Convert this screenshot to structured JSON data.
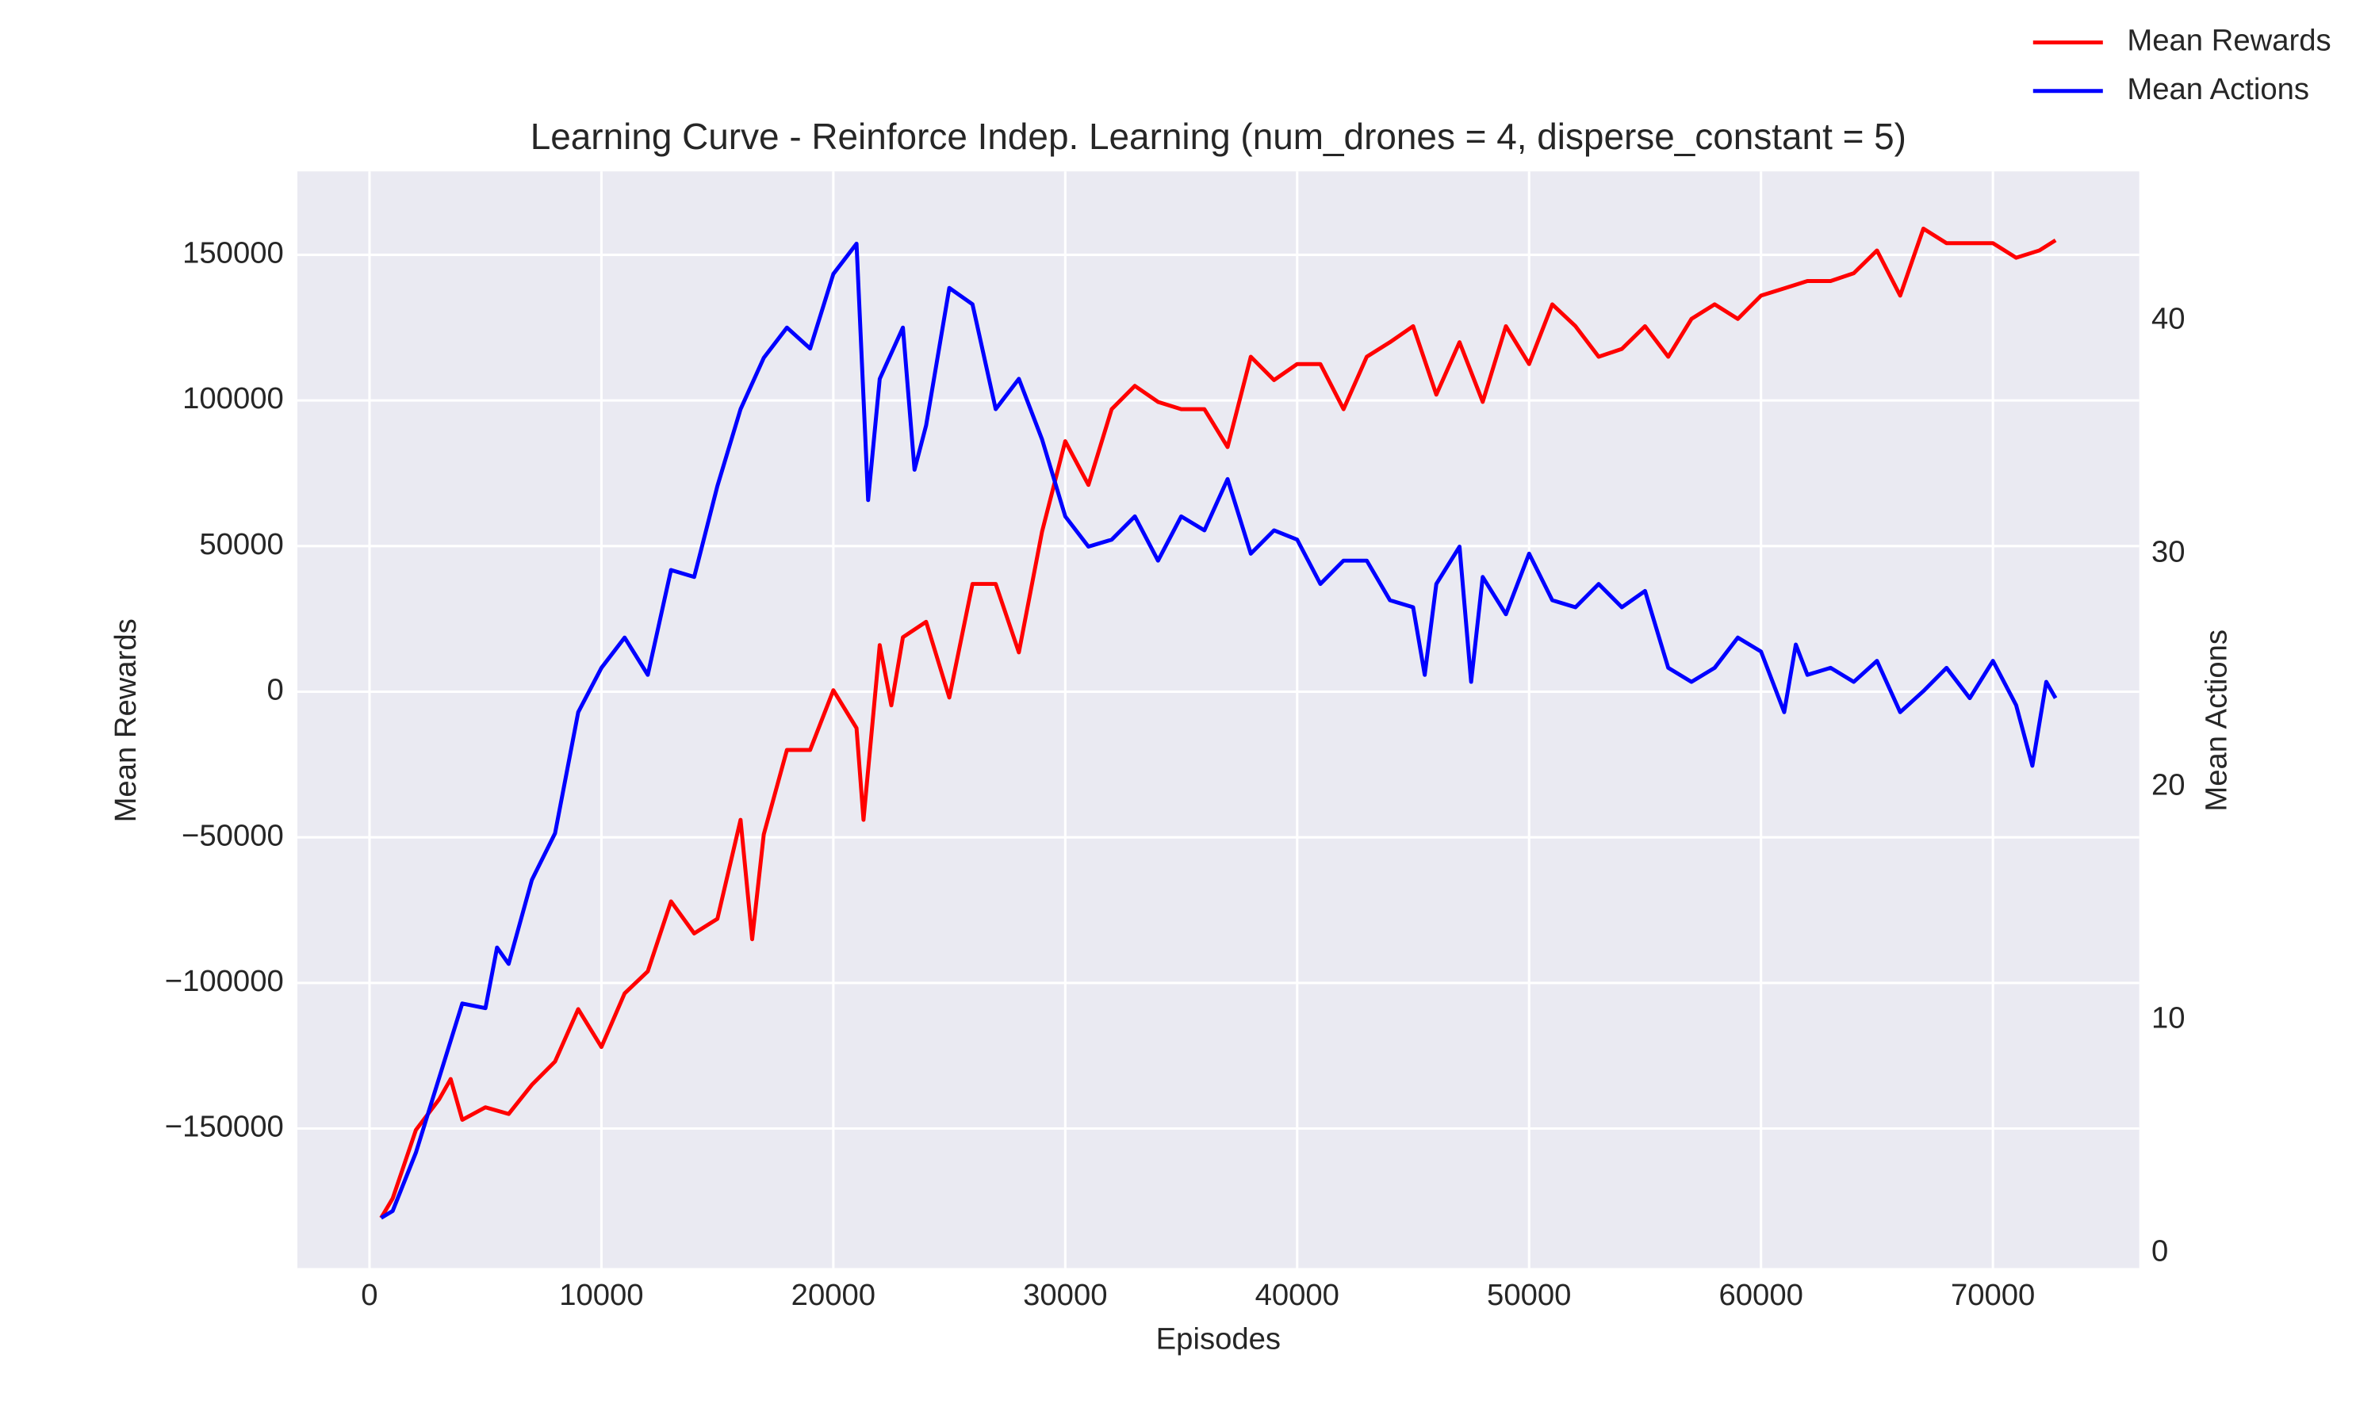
{
  "chart_data": {
    "type": "line",
    "title": "Learning Curve - Reinforce Indep. Learning (num_drones = 4, disperse_constant = 5)",
    "xlabel": "Episodes",
    "ylabel": "Mean Rewards",
    "y2label": "Mean Actions",
    "xlim": [
      -3110,
      76310
    ],
    "xticks": [
      0,
      10000,
      20000,
      30000,
      40000,
      50000,
      60000,
      70000
    ],
    "ylim": [
      -197900,
      178650
    ],
    "yticks": [
      {
        "value": -150000,
        "label": "−150000"
      },
      {
        "value": -100000,
        "label": "−100000"
      },
      {
        "value": -50000,
        "label": "−50000"
      },
      0,
      50000,
      100000,
      150000
    ],
    "y2lim": [
      -0.65,
      46.4
    ],
    "y2ticks": [
      0,
      10,
      20,
      30,
      40
    ],
    "grid": true,
    "legend": "upper right",
    "series": [
      {
        "name": "Mean Rewards",
        "color": "#ff0000",
        "x": [
          500,
          1000,
          2000,
          3000,
          3500,
          4000,
          5000,
          6000,
          7000,
          8000,
          9000,
          10000,
          11000,
          12000,
          13000,
          14000,
          15000,
          16000,
          16500,
          17000,
          18000,
          19000,
          20000,
          21000,
          21300,
          22000,
          22500,
          23000,
          24000,
          25000,
          26000,
          27000,
          28000,
          29000,
          30000,
          31000,
          32000,
          33000,
          34000,
          35000,
          36000,
          37000,
          38000,
          39000,
          40000,
          41000,
          42000,
          43000,
          44000,
          45000,
          46000,
          47000,
          48000,
          49000,
          50000,
          51000,
          52000,
          53000,
          54000,
          55000,
          56000,
          57000,
          58000,
          59000,
          60000,
          61000,
          62000,
          63000,
          64000,
          65000,
          66000,
          67000,
          68000,
          69000,
          70000,
          71000,
          72000,
          72700
        ],
        "values": [
          -180700,
          -174000,
          -150500,
          -140000,
          -133000,
          -147000,
          -142700,
          -145000,
          -135000,
          -127000,
          -109000,
          -122000,
          -103600,
          -96000,
          -72000,
          -83000,
          -78000,
          -44000,
          -85000,
          -49000,
          -20000,
          -20000,
          500,
          -12500,
          -44000,
          16000,
          -4700,
          18700,
          24000,
          -2000,
          37000,
          37000,
          13500,
          55000,
          86000,
          71000,
          97000,
          105000,
          99500,
          97000,
          97000,
          84000,
          115000,
          107000,
          112500,
          112500,
          97000,
          115000,
          120000,
          125500,
          102000,
          120000,
          99500,
          125500,
          112500,
          133000,
          125500,
          115000,
          117700,
          125500,
          115000,
          128000,
          133000,
          128000,
          136000,
          138500,
          141000,
          141000,
          143700,
          151500,
          136000,
          159000,
          154000,
          154000,
          154000,
          149000,
          151500,
          155000
        ]
      },
      {
        "name": "Mean Actions",
        "color": "#0000ff",
        "axis": "y2",
        "x": [
          500,
          1000,
          2000,
          3000,
          4000,
          5000,
          5500,
          6000,
          7000,
          8000,
          9000,
          10000,
          11000,
          12000,
          13000,
          14000,
          15000,
          16000,
          17000,
          18000,
          19000,
          20000,
          21000,
          21500,
          22000,
          23000,
          23500,
          24000,
          25000,
          26000,
          27000,
          28000,
          29000,
          30000,
          31000,
          32000,
          33000,
          34000,
          35000,
          36000,
          37000,
          38000,
          39000,
          40000,
          41000,
          42000,
          43000,
          44000,
          45000,
          45500,
          46000,
          47000,
          47500,
          48000,
          49000,
          50000,
          51000,
          52000,
          53000,
          54000,
          55000,
          56000,
          57000,
          58000,
          59000,
          60000,
          61000,
          61500,
          62000,
          63000,
          64000,
          65000,
          66000,
          67000,
          68000,
          69000,
          70000,
          71000,
          71700,
          72300,
          72700
        ],
        "values": [
          1.5,
          1.8,
          4.3,
          7.5,
          10.7,
          10.5,
          13.1,
          12.4,
          16.0,
          18.0,
          23.2,
          25.1,
          26.4,
          24.8,
          29.3,
          29.0,
          32.9,
          36.2,
          38.4,
          39.7,
          38.8,
          42.0,
          43.3,
          32.3,
          37.5,
          39.7,
          33.6,
          35.5,
          41.4,
          40.7,
          36.2,
          37.5,
          34.9,
          31.6,
          30.3,
          30.6,
          31.6,
          29.7,
          31.6,
          31.0,
          33.2,
          30.0,
          31.0,
          30.6,
          28.7,
          29.7,
          29.7,
          28.0,
          27.7,
          24.8,
          28.7,
          30.3,
          24.5,
          29.0,
          27.4,
          30.0,
          28.0,
          27.7,
          28.7,
          27.7,
          28.4,
          25.1,
          24.5,
          25.1,
          26.4,
          25.8,
          23.2,
          26.1,
          24.8,
          25.1,
          24.5,
          25.4,
          23.2,
          24.1,
          25.1,
          23.8,
          25.4,
          23.5,
          20.9,
          24.5,
          23.8
        ]
      }
    ]
  }
}
